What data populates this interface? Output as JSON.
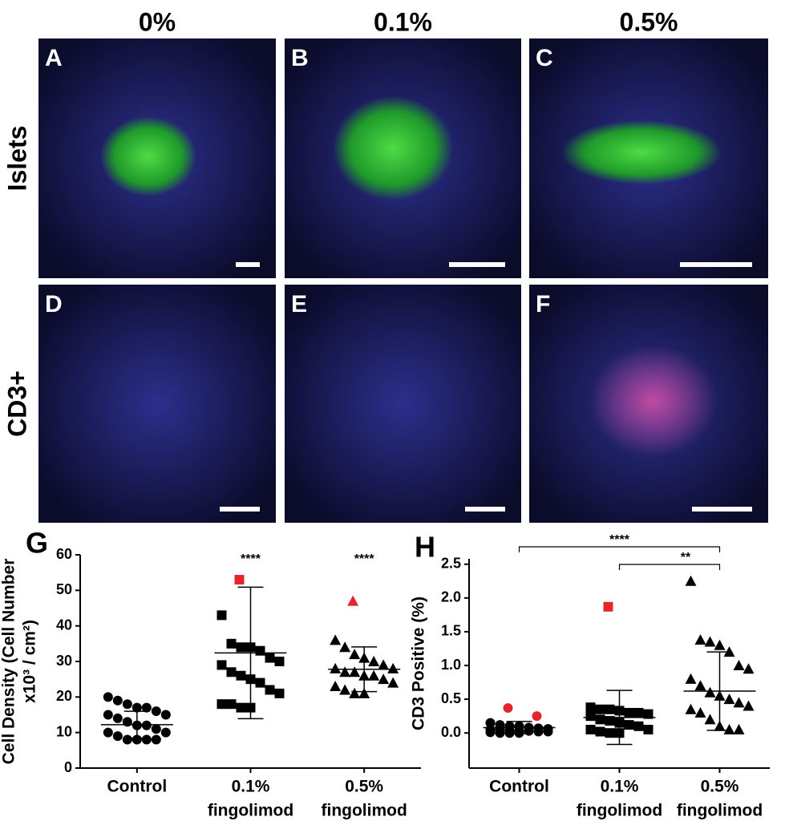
{
  "panels": {
    "columns": [
      "0%",
      "0.1%",
      "0.5%"
    ],
    "rows": [
      "Islets",
      "CD3+"
    ],
    "letters": [
      "A",
      "B",
      "C",
      "D",
      "E",
      "F"
    ]
  },
  "chart_data": [
    {
      "type": "scatter",
      "panel": "G",
      "ylabel": [
        "Cell Density (Cell Number",
        "x10³ / cm²)"
      ],
      "ylim": [
        0,
        60
      ],
      "yticks": [
        0,
        10,
        20,
        30,
        40,
        50,
        60
      ],
      "groups": [
        {
          "label": [
            "Control"
          ],
          "marker": "circle",
          "color": "#000000",
          "values": [
            20,
            19,
            18,
            17,
            17,
            16,
            15,
            15,
            14,
            13,
            12,
            12,
            11,
            10,
            10,
            9,
            8,
            8,
            8,
            8
          ],
          "mean": 12.2,
          "sd": 3.8
        },
        {
          "label": [
            "0.1%",
            "fingolimod"
          ],
          "marker": "square",
          "color": "#000000",
          "values": [
            43,
            35,
            34,
            34,
            33,
            31,
            30,
            29,
            27,
            26,
            25,
            24,
            22,
            21,
            18,
            18,
            17,
            17
          ],
          "outliers": [
            53
          ],
          "outlier_color": "#e3262b",
          "mean": 32.4,
          "sd": 18.5,
          "annotation": "****"
        },
        {
          "label": [
            "0.5%",
            "fingolimod"
          ],
          "marker": "triangle",
          "color": "#000000",
          "values": [
            36,
            34,
            32,
            31,
            30,
            29,
            28,
            28,
            27,
            27,
            26,
            26,
            25,
            24,
            23,
            22,
            21,
            21
          ],
          "outliers": [
            47
          ],
          "outlier_color": "#e3262b",
          "mean": 27.8,
          "sd": 6.3,
          "annotation": "****"
        }
      ]
    },
    {
      "type": "scatter",
      "panel": "H",
      "ylabel": [
        "CD3 Positive (%)"
      ],
      "ylim": [
        -0.52,
        2.58
      ],
      "yticks": [
        {
          "value": 0,
          "label": "0.0"
        },
        0.5,
        {
          "value": 1,
          "label": "1.0"
        },
        1.5,
        {
          "value": 2,
          "label": "2.0"
        },
        2.5
      ],
      "groups": [
        {
          "label": [
            "Control"
          ],
          "marker": "circle",
          "color": "#000000",
          "values": [
            0.15,
            0.12,
            0.1,
            0.1,
            0.08,
            0.07,
            0.06,
            0.05,
            0.05,
            0.04,
            0.03,
            0.03,
            0.02,
            0.02,
            0.01,
            0,
            0,
            0
          ],
          "outliers": [
            0.37,
            0.25
          ],
          "outlier_color": "#e3262b",
          "mean": 0.08,
          "sd": 0.09
        },
        {
          "label": [
            "0.1%",
            "fingolimod"
          ],
          "marker": "square",
          "color": "#000000",
          "values": [
            0.38,
            0.35,
            0.35,
            0.33,
            0.3,
            0.3,
            0.28,
            0.25,
            0.2,
            0.18,
            0.15,
            0.12,
            0.1,
            0.05,
            0.05,
            0.02,
            0,
            0
          ],
          "outliers": [
            1.87
          ],
          "outlier_color": "#e3262b",
          "mean": 0.23,
          "sd": 0.4
        },
        {
          "label": [
            "0.5%",
            "fingolimod"
          ],
          "marker": "triangle",
          "color": "#000000",
          "values": [
            2.25,
            1.38,
            1.35,
            1.3,
            1.2,
            1,
            0.95,
            0.8,
            0.7,
            0.6,
            0.55,
            0.5,
            0.45,
            0.4,
            0.35,
            0.3,
            0.2,
            0.1,
            0.05,
            0.05
          ],
          "mean": 0.62,
          "sd": 0.58
        }
      ],
      "comparisons": [
        {
          "groups": [
            0,
            2
          ],
          "label": "****"
        },
        {
          "groups": [
            1,
            2
          ],
          "label": "**"
        }
      ]
    }
  ]
}
